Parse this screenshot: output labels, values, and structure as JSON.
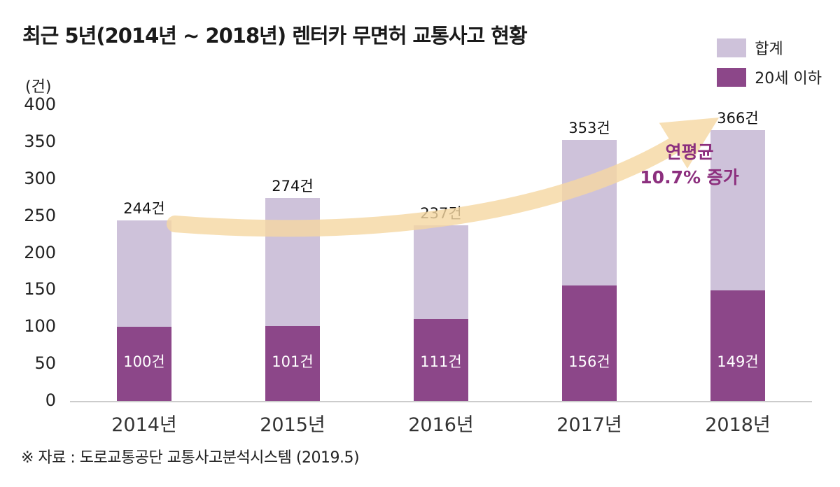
{
  "title": "최근 5년(2014년 ~ 2018년) 렌터카 무면허 교통사고 현황",
  "legend": {
    "total": "합계",
    "under20": "20세 이하"
  },
  "unit_label": "(건)",
  "annotation": {
    "line1": "연평균",
    "line2": "10.7% 증가"
  },
  "source": "※ 자료 : 도로교통공단 교통사고분석시스템 (2019.5)",
  "colors": {
    "total": "#cec2da",
    "under20": "#8c4789",
    "arrow": "#f6d8a2",
    "annotation": "#8c2f7e"
  },
  "chart_data": {
    "type": "bar",
    "stacked": true,
    "title": "최근 5년(2014년 ~ 2018년) 렌터카 무면허 교통사고 현황",
    "categories": [
      "2014년",
      "2015년",
      "2016년",
      "2017년",
      "2018년"
    ],
    "series": [
      {
        "name": "합계",
        "values": [
          244,
          274,
          237,
          353,
          366
        ]
      },
      {
        "name": "20세 이하",
        "values": [
          100,
          101,
          111,
          156,
          149
        ]
      }
    ],
    "total_labels": [
      "244건",
      "274건",
      "237건",
      "353건",
      "366건"
    ],
    "under20_labels": [
      "100건",
      "101건",
      "111건",
      "156건",
      "149건"
    ],
    "ylabel": "(건)",
    "xlabel": "",
    "ylim": [
      0,
      400
    ],
    "yticks": [
      0,
      50,
      100,
      150,
      200,
      250,
      300,
      350,
      400
    ],
    "grid": false,
    "legend_position": "top-right",
    "annotation_text": "연평균 10.7% 증가"
  }
}
